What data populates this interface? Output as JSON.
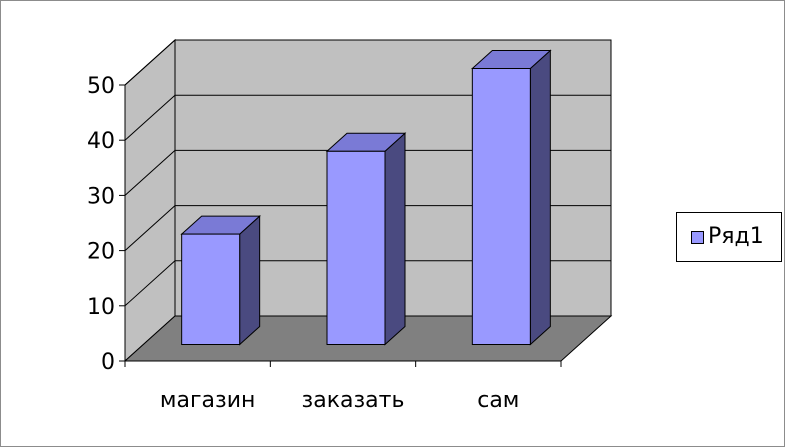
{
  "chart_data": {
    "type": "bar",
    "categories": [
      "магазин",
      "заказать",
      "сам"
    ],
    "series": [
      {
        "name": "Ряд1",
        "values": [
          20,
          35,
          50
        ]
      }
    ],
    "ylim": [
      0,
      50
    ],
    "yticks": [
      0,
      10,
      20,
      30,
      40,
      50
    ],
    "grid": true,
    "legend": "right",
    "colors": {
      "bar_front": "#9999ff",
      "bar_top": "#7a7ad6",
      "bar_side": "#4a4a80",
      "back_wall": "#c0c0c0",
      "side_wall": "#c0c0c0",
      "floor": "#808080"
    }
  },
  "legend": {
    "label": "Ряд1"
  }
}
